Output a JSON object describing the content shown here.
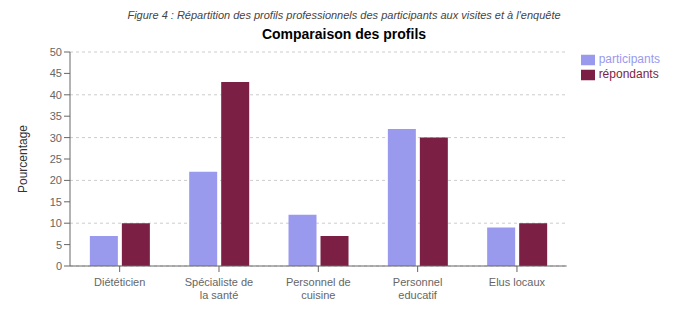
{
  "chart_data": {
    "type": "bar",
    "title": "Comparaison des profils",
    "subtitle": "Figure 4 : Répartition des profils professionnels des participants aux visites et à l'enquête",
    "categories": [
      "Diététicien",
      "Spécialiste de la santé",
      "Personnel de cuisine",
      "Personnel educatif",
      "Elus locaux"
    ],
    "series": [
      {
        "name": "participants",
        "color": "#9999EE",
        "values": [
          7,
          22,
          12,
          32,
          9
        ]
      },
      {
        "name": "répondants",
        "color": "#7B1F45",
        "values": [
          10,
          43,
          7,
          30,
          10
        ]
      }
    ],
    "ylabel": "Pourcentage",
    "ylim": [
      0,
      50
    ],
    "yticks": [
      0,
      5,
      10,
      15,
      20,
      25,
      30,
      35,
      40,
      45,
      50
    ],
    "grid": true,
    "legend": "right"
  }
}
